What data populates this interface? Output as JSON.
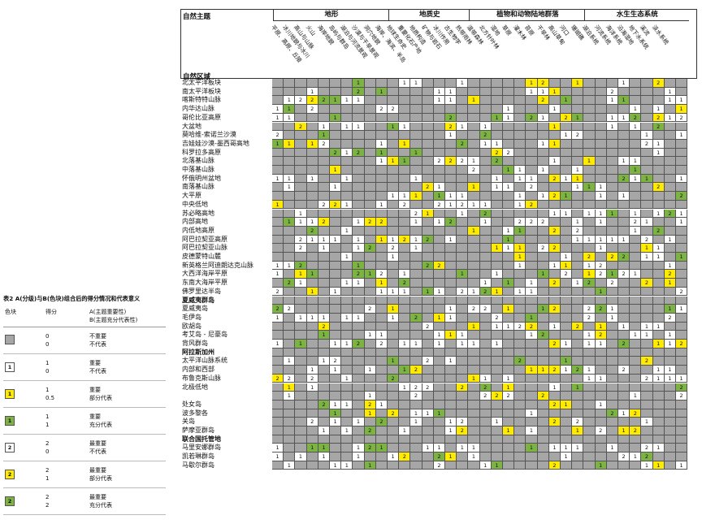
{
  "legend": {
    "title": "表2  A(分级)与B(色块)组合后的得分情况和代表意义",
    "headers": [
      "色块",
      "得分",
      "A(主题重要性)\nB(主题充分代表性)"
    ],
    "rows": [
      {
        "swatch": "gray",
        "label": "",
        "score": "0\n0",
        "meaning": "不重要\n不代表"
      },
      {
        "swatch": "white",
        "label": "1",
        "score": "1\n0",
        "meaning": "重要\n不代表"
      },
      {
        "swatch": "yellow",
        "label": "1",
        "score": "1\n0.5",
        "meaning": "重要\n部分代表"
      },
      {
        "swatch": "green",
        "label": "1",
        "score": "1\n1",
        "meaning": "重要\n充分代表"
      },
      {
        "swatch": "white",
        "label": "2",
        "score": "2\n0",
        "meaning": "最重要\n不代表"
      },
      {
        "swatch": "yellow",
        "label": "2",
        "score": "2\n1",
        "meaning": "最重要\n部分代表"
      },
      {
        "swatch": "green",
        "label": "2",
        "score": "2\n2",
        "meaning": "最重要\n充分代表"
      }
    ]
  },
  "matrix": {
    "corner_top": "自然主题",
    "corner_bottom": "自然区域",
    "categories": [
      "地形",
      "地质史",
      "植物和动物陆地群落",
      "水生生态系统"
    ],
    "subthemes": [
      "平原、高原、丘陵",
      "冰川地貌与冰川",
      "高山与山脉",
      "火山",
      "海岸地貌",
      "岛屿与群岛",
      "湖泊与河流景观",
      "沙漠与干旱景观",
      "洞穴地貌",
      "海岸、海滨、半岛",
      "地球生命史",
      "重要化石产地",
      "地质构造",
      "矿物与岩石",
      "冰川作用",
      "古生物学",
      "热带雨林",
      "温带森林",
      "北方针叶林",
      "湿地",
      "草原",
      "灌木林",
      "苔原",
      "干旱林",
      "高山草甸",
      "河口",
      "珊瑚礁",
      "湖泊系统",
      "河流系统",
      "海洋系统",
      "沿海湿地",
      "地下水系统",
      "溪流",
      "淡水系统"
    ],
    "groups": [
      {
        "label": "",
        "regions": [
          "北太平洋板块",
          "南太平洋板块",
          "喀斯特特山脉",
          "内华达山脉",
          "哥伦比亚高原",
          "大盆地",
          "莫哈维-索诺兰沙漠",
          "吉娃娃沙漠-墨西哥高地",
          "科罗拉多高原",
          "北落基山脉",
          "中落基山脉",
          "怀俄明州盆地",
          "南落基山脉",
          "大平原",
          "中央低地",
          "苏必略高地",
          "内部高地",
          "内低地高原",
          "阿巴拉契亚高原",
          "阿巴拉契亚山脉",
          "皮德蒙特山麓",
          "新英格兰阿迪朗达克山脉",
          "大西洋海岸平原",
          "东南大海岸平原",
          "佛罗里达半岛"
        ]
      },
      {
        "label": "夏威夷群岛",
        "regions": [
          "夏威夷岛",
          "毛伊岛",
          "欧胡岛",
          "考艾岛 - 尼豪岛",
          "背风群岛"
        ]
      },
      {
        "label": "阿拉斯加州",
        "regions": [
          "太平洋山脉系统",
          "内部和西部",
          "布鲁克斯山脉",
          "北极低地"
        ]
      },
      {
        "label": "",
        "regions": [
          "",
          "处女岛",
          "波多黎各",
          "关岛",
          "萨摩亚群岛"
        ]
      },
      {
        "label": "联合国托管地",
        "regions": [
          "马里安娜群岛",
          "凯若琳群岛",
          "马歇尔群岛"
        ]
      }
    ]
  },
  "colors": {
    "gray": "#a6a6a6",
    "yellow": "#ffeb00",
    "green": "#7cb342",
    "white": "#ffffff"
  }
}
